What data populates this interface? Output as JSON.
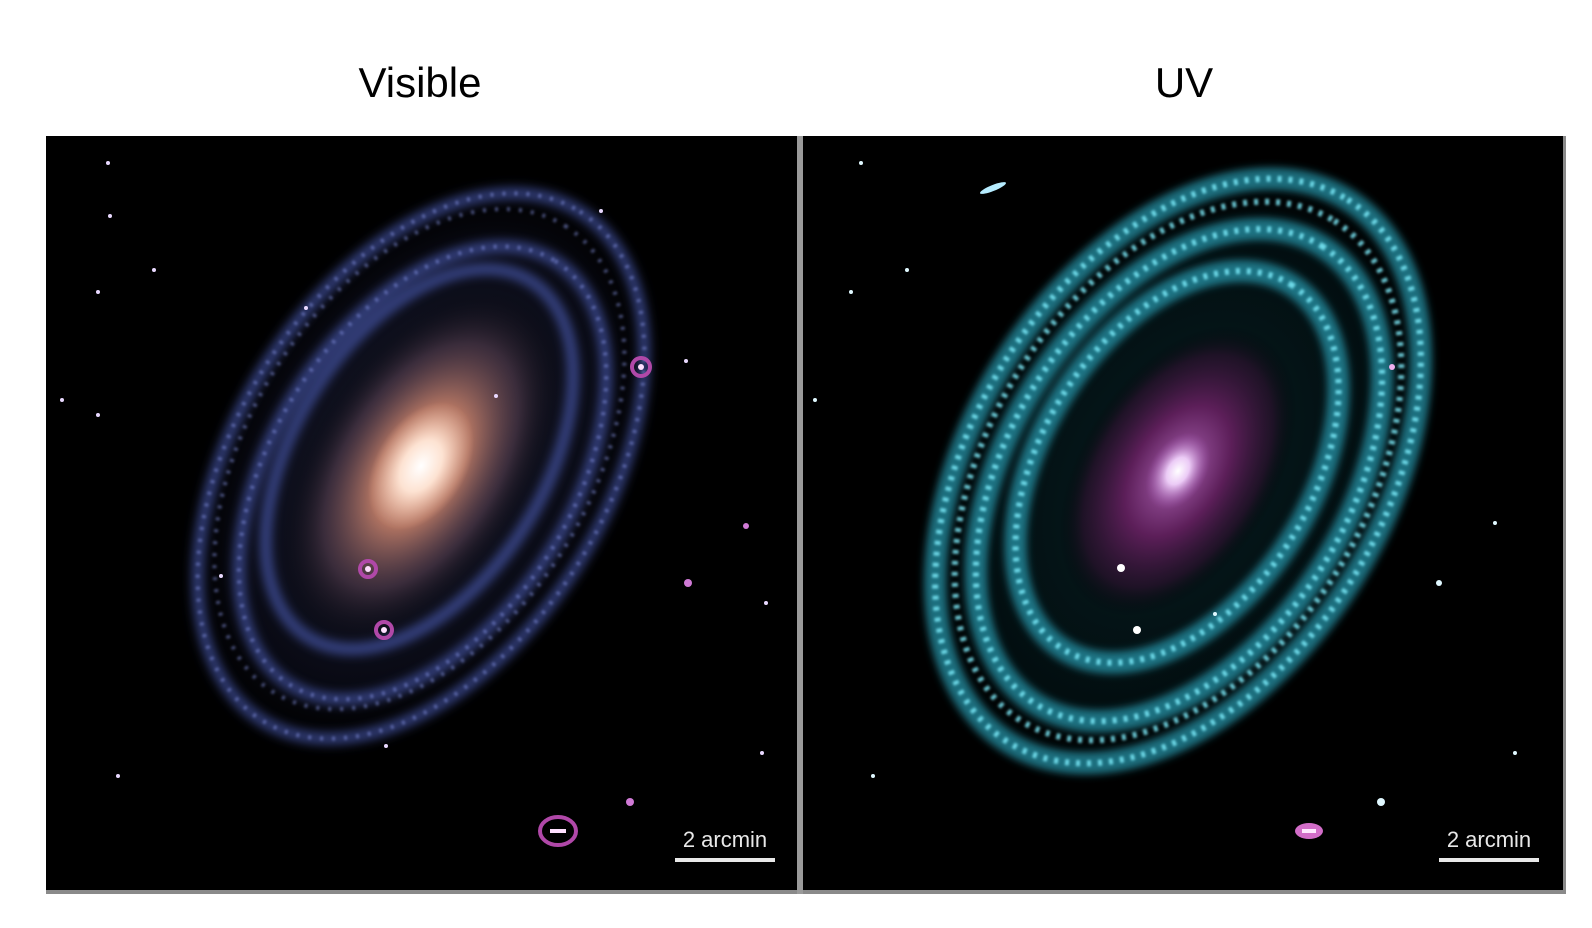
{
  "panels": [
    {
      "title": "Visible",
      "scale_label": "2 arcmin"
    },
    {
      "title": "UV",
      "scale_label": "2 arcmin"
    }
  ],
  "colors": {
    "visible_core": "#ffe6d6",
    "visible_disk": "#c9826a",
    "visible_arms": "#5a6fd8",
    "uv_core": "#f4d8ff",
    "uv_disk": "#6b1f63",
    "uv_arms": "#47d9f0",
    "background": "#000000",
    "frame": "#8a8a8a"
  }
}
